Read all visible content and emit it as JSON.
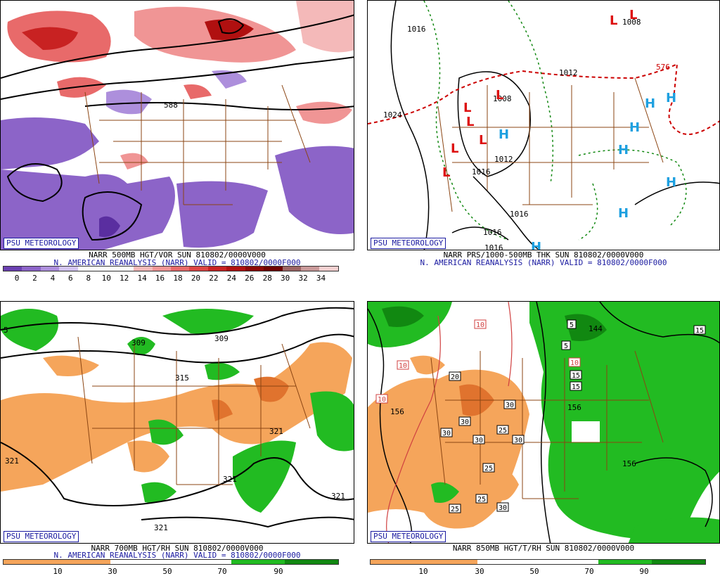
{
  "badge": "PSU METEOROLOGY",
  "panels": [
    {
      "line1": "NARR 500MB HGT/VOR SUN 810802/0000V000",
      "line2": "N. AMERICAN REANALYSIS (NARR) VALID = 810802/0000F000",
      "scale": [
        "0",
        "2",
        "4",
        "6",
        "8",
        "10",
        "12",
        "14",
        "16",
        "18",
        "20",
        "22",
        "24",
        "26",
        "28",
        "30",
        "32",
        "34"
      ],
      "colors": [
        "#6a3fb0",
        "#8c64c8",
        "#ad8fdc",
        "#d2c4ef",
        "#ffffff",
        "#ffffff",
        "#ffffff",
        "#f4b9b9",
        "#f09595",
        "#e86a6a",
        "#dd4444",
        "#c82222",
        "#b01010",
        "#8c0808",
        "#6e0000",
        "#9c6464",
        "#c99999",
        "#f2d0d0"
      ],
      "labels": [
        "588"
      ]
    },
    {
      "line1": "NARR PRS/1000-500MB THK SUN 810802/0000V000",
      "line2": "N. AMERICAN REANALYSIS (NARR) VALID = 810802/0000F000",
      "labels": [
        "1016",
        "1024",
        "1012",
        "1008",
        "1016",
        "1016",
        "1016",
        "1016",
        "576",
        "1008",
        "1012"
      ],
      "highs": "H",
      "lows": "L"
    },
    {
      "line1": "NARR 700MB HGT/RH SUN 810802/0000V000",
      "line2": "N. AMERICAN REANALYSIS (NARR) VALID = 810802/0000F000",
      "scale": [
        "10",
        "30",
        "50",
        "70",
        "90"
      ],
      "labels": [
        "309",
        "309",
        "315",
        "321",
        "321",
        "321",
        "321",
        "321",
        "5"
      ]
    },
    {
      "line1": "NARR 850MB HGT/T/RH SUN 810802/0000V000",
      "scale": [
        "10",
        "30",
        "50",
        "70",
        "90"
      ],
      "labels": [
        "156",
        "156",
        "156",
        "144",
        "10",
        "10",
        "10",
        "10",
        "20",
        "30",
        "30",
        "30",
        "30",
        "25",
        "25",
        "25",
        "25",
        "30",
        "30",
        "15",
        "15",
        "15",
        "5",
        "5"
      ]
    }
  ],
  "colors": {
    "rh_dry": "#f5a55b",
    "rh_dry_dark": "#e0732e",
    "rh_wet": "#22bb22",
    "rh_wet_dark": "#118811",
    "state_lines": "#8b4513",
    "thickness": "#cc0000",
    "h_blue": "#1ea0e0",
    "l_red": "#dd1111",
    "dashed_green": "#118811",
    "caption_blue": "#1a1aa0"
  }
}
